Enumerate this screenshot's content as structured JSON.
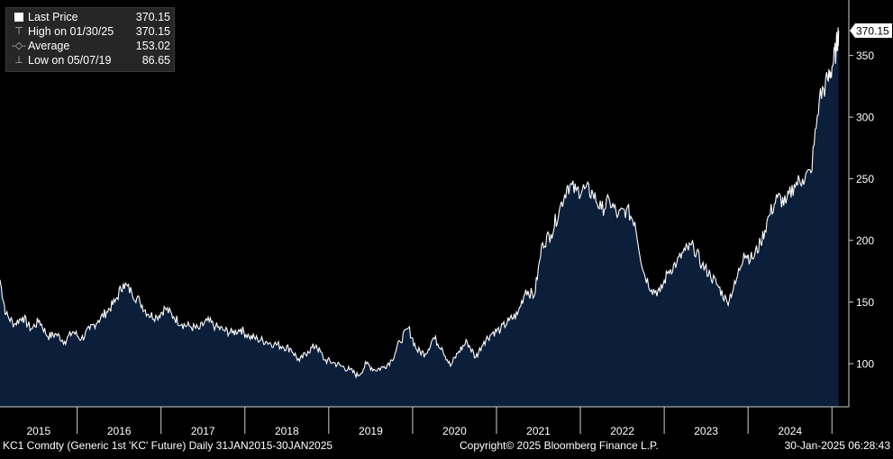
{
  "legend": {
    "last_price_label": "Last Price",
    "last_price_value": "370.15",
    "high_label": "High on 01/30/25",
    "high_value": "370.15",
    "average_label": "Average",
    "average_value": "153.02",
    "low_label": "Low on 05/07/19",
    "low_value": "86.65"
  },
  "last_price_tag": "370.15",
  "footer": {
    "left": "KC1 Comdty (Generic 1st 'KC' Future)  Daily 31JAN2015-30JAN2025",
    "center": "Copyright© 2025 Bloomberg Finance L.P.",
    "right": "30-Jan-2025 06:28:43"
  },
  "colors": {
    "background": "#000000",
    "area_fill": "#0b1f3a",
    "line": "#ffffff",
    "legend_bg": "#262626"
  },
  "chart_data": {
    "type": "area",
    "title": "",
    "xlabel": "",
    "ylabel": "",
    "x_tick_labels": [
      "2015",
      "2016",
      "2017",
      "2018",
      "2019",
      "2020",
      "2021",
      "2022",
      "2023",
      "2024"
    ],
    "y_tick_labels": [
      "100",
      "150",
      "200",
      "250",
      "300",
      "350"
    ],
    "y_ticks": [
      100,
      150,
      200,
      250,
      300,
      350
    ],
    "ylim": [
      65,
      395
    ],
    "xlim": [
      2015.08,
      2025.18
    ],
    "grid": false,
    "legend_position": "top-left",
    "series": [
      {
        "name": "Last Price",
        "x": [
          2015.08,
          2015.15,
          2015.25,
          2015.35,
          2015.45,
          2015.55,
          2015.65,
          2015.75,
          2015.85,
          2015.95,
          2016.05,
          2016.15,
          2016.25,
          2016.35,
          2016.45,
          2016.55,
          2016.65,
          2016.75,
          2016.85,
          2016.95,
          2017.05,
          2017.15,
          2017.25,
          2017.35,
          2017.45,
          2017.55,
          2017.65,
          2017.75,
          2017.85,
          2017.95,
          2018.05,
          2018.15,
          2018.25,
          2018.35,
          2018.45,
          2018.55,
          2018.65,
          2018.75,
          2018.85,
          2018.95,
          2019.05,
          2019.15,
          2019.25,
          2019.35,
          2019.45,
          2019.55,
          2019.65,
          2019.75,
          2019.85,
          2019.95,
          2020.05,
          2020.15,
          2020.25,
          2020.35,
          2020.45,
          2020.55,
          2020.65,
          2020.75,
          2020.85,
          2020.95,
          2021.05,
          2021.15,
          2021.25,
          2021.35,
          2021.45,
          2021.55,
          2021.65,
          2021.75,
          2021.85,
          2021.95,
          2022.05,
          2022.15,
          2022.25,
          2022.35,
          2022.45,
          2022.55,
          2022.65,
          2022.75,
          2022.85,
          2022.95,
          2023.05,
          2023.15,
          2023.25,
          2023.35,
          2023.45,
          2023.55,
          2023.65,
          2023.75,
          2023.85,
          2023.95,
          2024.05,
          2024.15,
          2024.25,
          2024.35,
          2024.45,
          2024.55,
          2024.65,
          2024.75,
          2024.85,
          2024.95,
          2025.0,
          2025.05,
          2025.08
        ],
        "values": [
          168,
          140,
          132,
          138,
          128,
          135,
          122,
          124,
          118,
          126,
          120,
          128,
          135,
          142,
          150,
          165,
          158,
          150,
          140,
          138,
          145,
          138,
          132,
          130,
          128,
          135,
          130,
          127,
          125,
          128,
          122,
          120,
          118,
          116,
          114,
          112,
          102,
          110,
          115,
          103,
          101,
          98,
          95,
          90,
          100,
          95,
          97,
          103,
          118,
          129,
          111,
          108,
          121,
          113,
          98,
          110,
          118,
          105,
          118,
          125,
          128,
          135,
          140,
          160,
          155,
          198,
          205,
          225,
          245,
          240,
          242,
          238,
          225,
          232,
          220,
          225,
          215,
          175,
          160,
          158,
          175,
          182,
          192,
          195,
          180,
          172,
          162,
          150,
          165,
          190,
          185,
          198,
          220,
          235,
          230,
          245,
          250,
          255,
          315,
          330,
          340,
          355,
          370.15
        ]
      }
    ],
    "average": 153.02,
    "high": 370.15,
    "low": 86.65
  }
}
